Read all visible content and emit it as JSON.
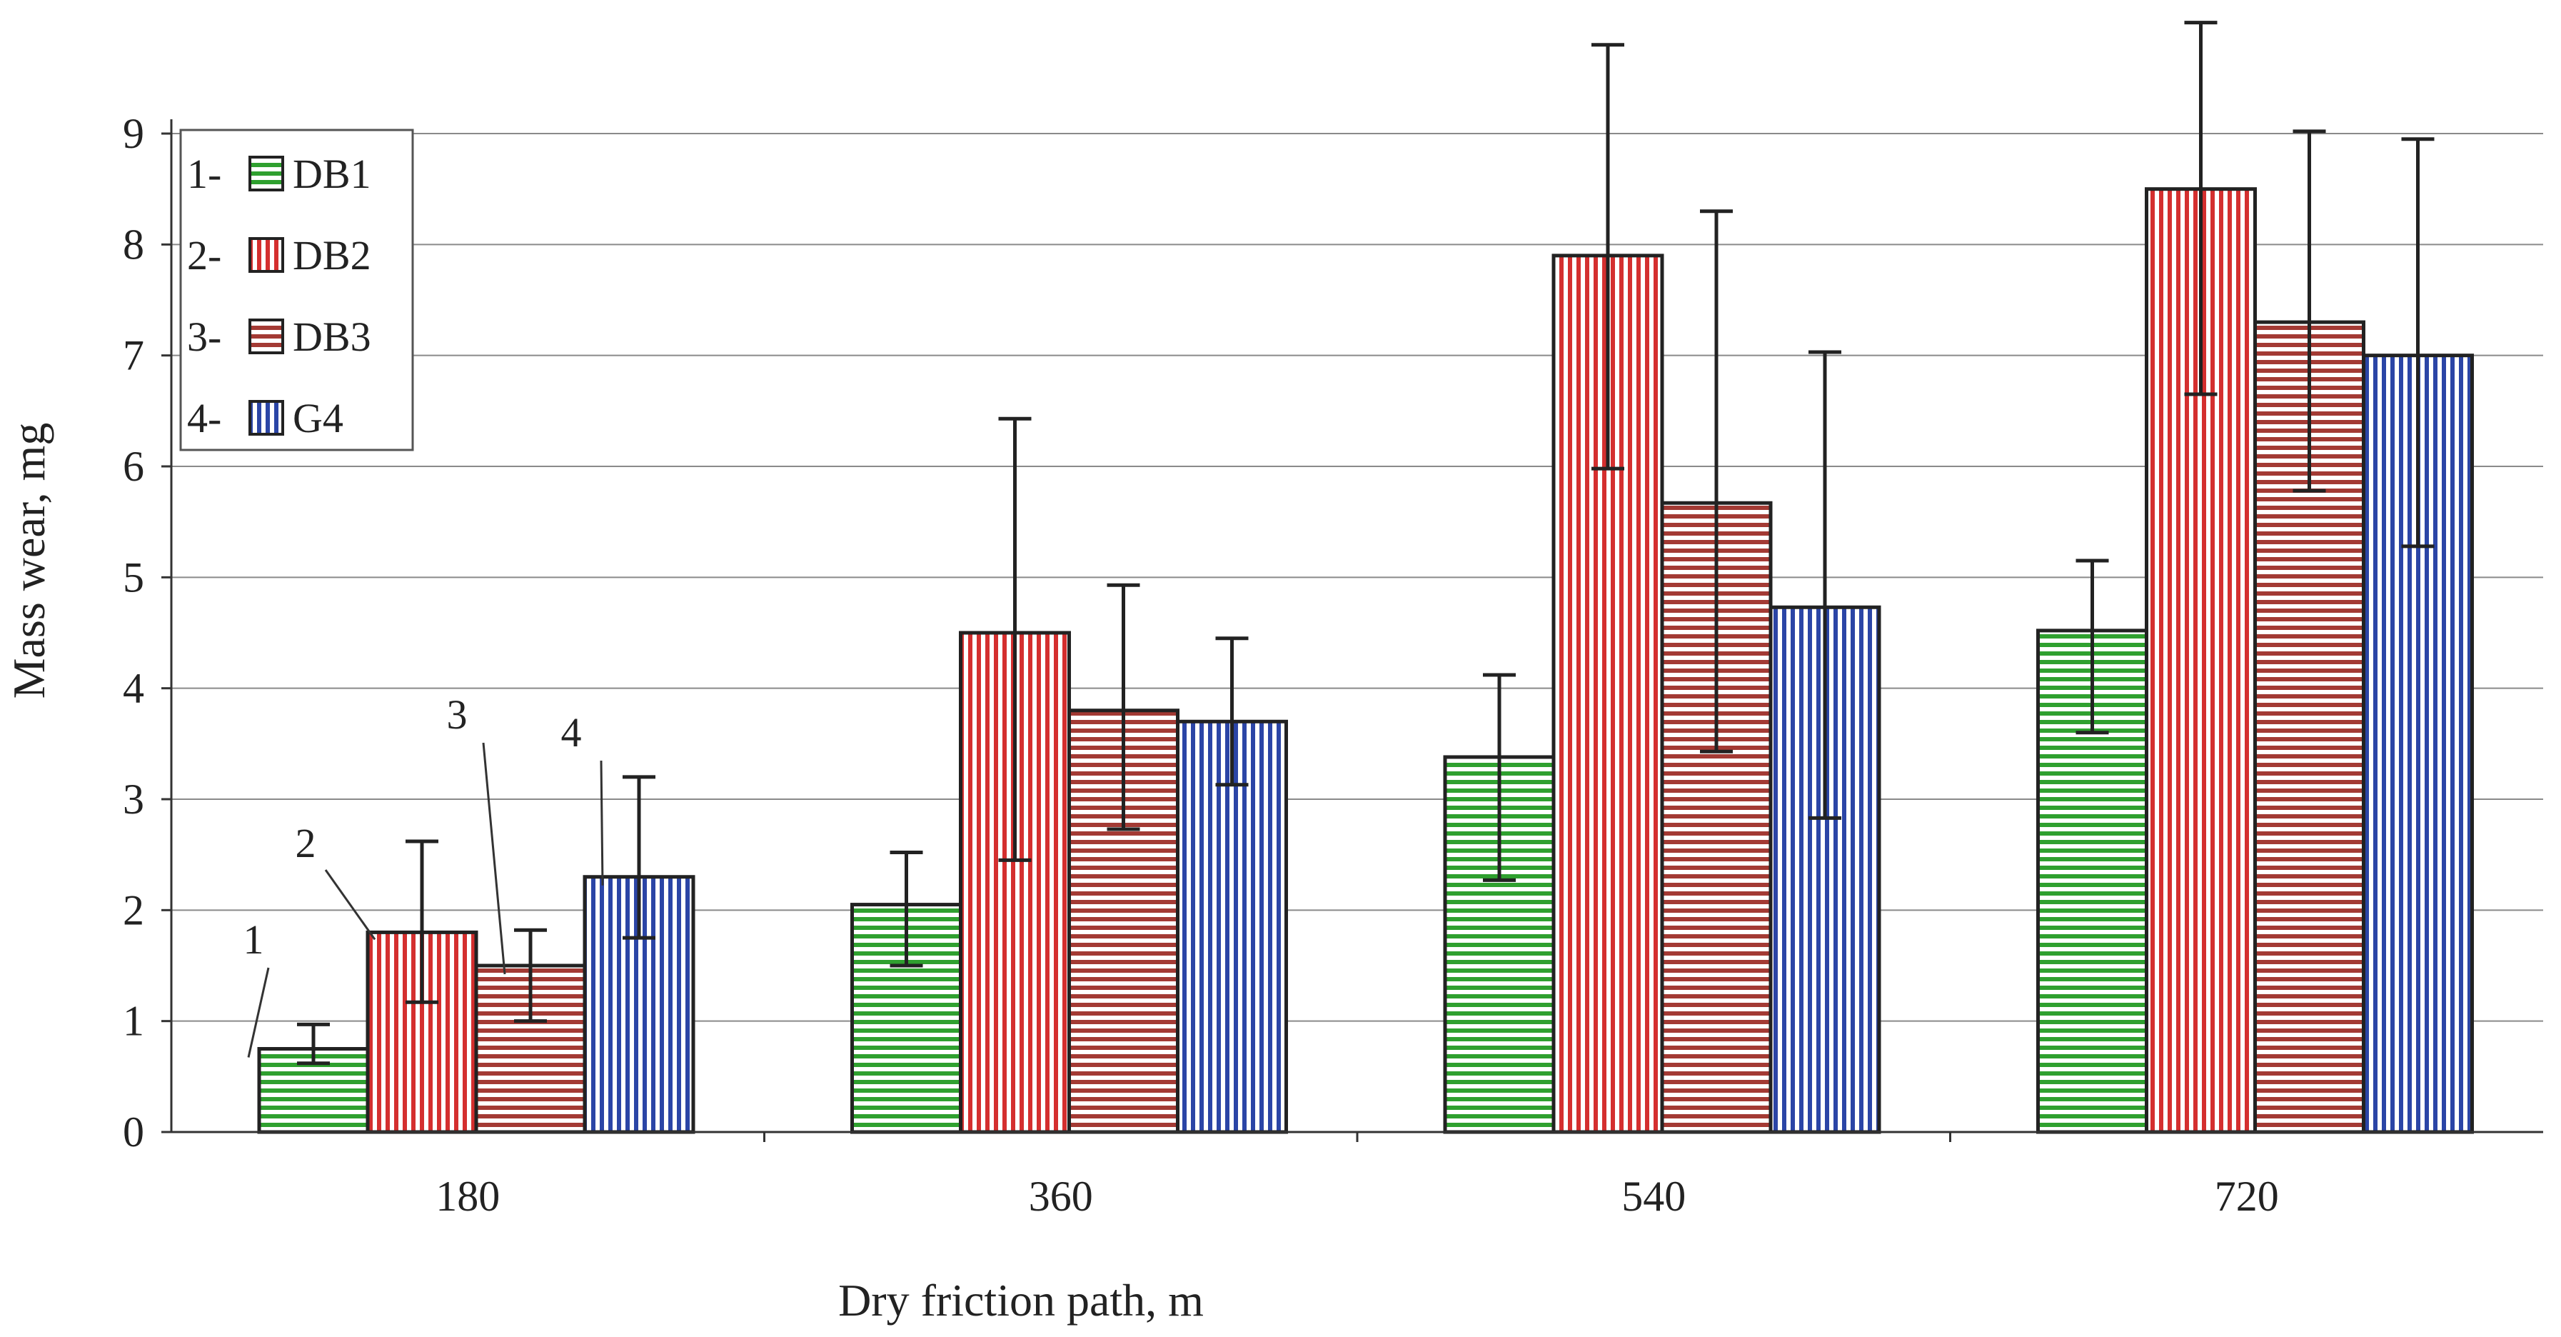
{
  "chart_data": {
    "type": "bar",
    "title": "",
    "xlabel": "Dry friction path, m",
    "ylabel": "Mass wear, mg",
    "categories": [
      "180",
      "360",
      "540",
      "720"
    ],
    "ylim": [
      0,
      9
    ],
    "yticks": [
      0,
      1,
      2,
      3,
      4,
      5,
      6,
      7,
      8,
      9
    ],
    "grid": true,
    "legend_position": "top-left",
    "series": [
      {
        "name": "DB1",
        "number": "1-",
        "color": "#2fa02f",
        "pattern": "horizontal",
        "values": [
          0.75,
          2.05,
          3.38,
          4.52
        ],
        "err_low": [
          0.62,
          1.5,
          2.27,
          3.6
        ],
        "err_high": [
          0.97,
          2.52,
          4.12,
          5.15
        ]
      },
      {
        "name": "DB2",
        "number": "2-",
        "color": "#d42f2f",
        "pattern": "vertical",
        "values": [
          1.8,
          4.5,
          7.9,
          8.5
        ],
        "err_low": [
          1.17,
          2.45,
          5.98,
          6.65
        ],
        "err_high": [
          2.62,
          6.43,
          9.8,
          10.0
        ]
      },
      {
        "name": "DB3",
        "number": "3-",
        "color": "#a33a34",
        "pattern": "horizontal",
        "values": [
          1.5,
          3.8,
          5.67,
          7.3
        ],
        "err_low": [
          1.0,
          2.73,
          3.43,
          5.78
        ],
        "err_high": [
          1.82,
          4.93,
          8.3,
          9.02
        ]
      },
      {
        "name": "G4",
        "number": "4-",
        "color": "#2b45a6",
        "pattern": "vertical",
        "values": [
          2.3,
          3.7,
          4.73,
          7.0
        ],
        "err_low": [
          1.75,
          3.13,
          2.83,
          5.28
        ],
        "err_high": [
          3.2,
          4.45,
          7.03,
          8.95
        ]
      }
    ],
    "annotations": [
      "1",
      "2",
      "3",
      "4"
    ]
  }
}
